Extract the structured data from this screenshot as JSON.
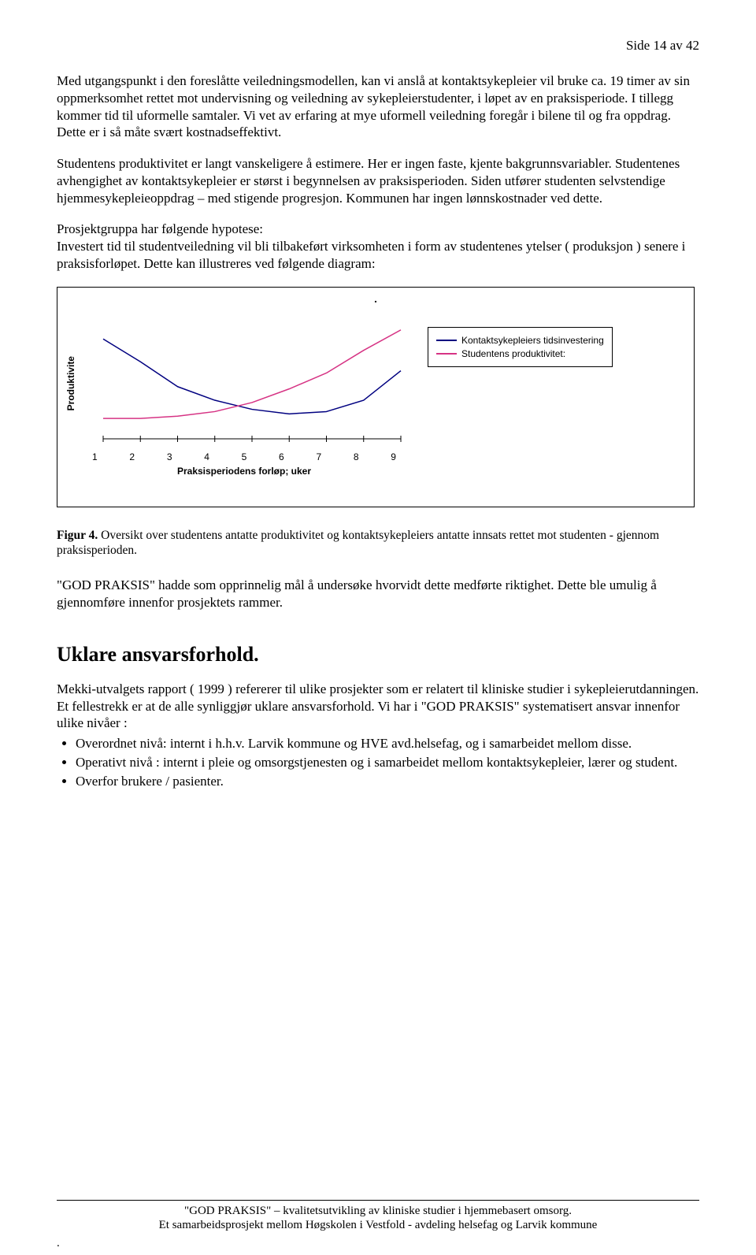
{
  "page_label": "Side 14 av 42",
  "paragraphs": {
    "p1": "Med utgangspunkt i den foreslåtte veiledningsmodellen, kan vi anslå at kontaktsykepleier vil bruke ca. 19 timer av sin oppmerksomhet rettet mot undervisning og veiledning av sykepleierstudenter, i løpet av en praksisperiode. I tillegg kommer tid til uformelle samtaler. Vi vet av erfaring at mye uformell veiledning foregår i bilene til og fra oppdrag. Dette er i så måte svært kostnadseffektivt.",
    "p2": "Studentens produktivitet er langt vanskeligere å  estimere. Her er ingen faste, kjente bakgrunnsvariabler. Studentenes avhengighet av kontaktsykepleier er størst i begynnelsen av praksisperioden. Siden utfører studenten selvstendige hjemmesykepleieoppdrag – med stigende progresjon. Kommunen har ingen lønnskostnader ved dette.",
    "p3_lead": "Prosjektgruppa har følgende hypotese:",
    "p3_rest": "Investert tid til studentveiledning vil bli tilbakeført virksomheten i form av studentenes ytelser ( produksjon ) senere i praksisforløpet. Dette kan illustreres ved følgende diagram:"
  },
  "chart": {
    "type": "line",
    "title_dot": ".",
    "ylabel": "Produktivite",
    "xlabel": "Praksisperiodens forløp; uker",
    "x_ticks": [
      "1",
      "2",
      "3",
      "4",
      "5",
      "6",
      "7",
      "8",
      "9"
    ],
    "xlim": [
      1,
      9
    ],
    "ylim": [
      0,
      100
    ],
    "background_color": "#ffffff",
    "axis_color": "#000000",
    "line_width": 1.5,
    "series": [
      {
        "name": "kontaktsykepleier",
        "label": "Kontaktsykepleiers tidsinvestering",
        "color": "#000080",
        "x": [
          1,
          2,
          3,
          4,
          5,
          6,
          7,
          8,
          9
        ],
        "y": [
          88,
          68,
          46,
          34,
          26,
          22,
          24,
          34,
          60
        ]
      },
      {
        "name": "student",
        "label": "Studentens produktivitet:",
        "color": "#d63384",
        "x": [
          1,
          2,
          3,
          4,
          5,
          6,
          7,
          8,
          9
        ],
        "y": [
          18,
          18,
          20,
          24,
          32,
          44,
          58,
          78,
          96
        ]
      }
    ]
  },
  "caption": {
    "lead": "Figur 4.",
    "rest": " Oversikt over studentens antatte produktivitet og kontaktsykepleiers antatte innsats rettet mot studenten - gjennom praksisperioden."
  },
  "after_caption": "\"GOD PRAKSIS\" hadde som opprinnelig mål å undersøke hvorvidt dette medførte riktighet. Dette ble umulig å gjennomføre innenfor prosjektets rammer.",
  "section_heading": "Uklare ansvarsforhold.",
  "section_intro": "Mekki-utvalgets rapport ( 1999 ) refererer til ulike prosjekter som er relatert til kliniske studier i sykepleierutdanningen. Et fellestrekk er at de alle synliggjør uklare ansvarsforhold. Vi har i \"GOD PRAKSIS\" systematisert ansvar innenfor ulike nivåer :",
  "bullets": [
    "Overordnet nivå:  internt i h.h.v. Larvik kommune og HVE avd.helsefag, og i samarbeidet mellom disse.",
    "Operativt nivå : internt i pleie og omsorgstjenesten og i samarbeidet mellom kontaktsykepleier, lærer og student.",
    "Overfor brukere / pasienter."
  ],
  "footer": {
    "line1": "\"GOD PRAKSIS\" – kvalitetsutvikling av kliniske studier i hjemmebasert omsorg.",
    "line2": "Et samarbeidsprosjekt mellom Høgskolen i Vestfold - avdeling helsefag og Larvik kommune"
  },
  "corner_dot": "."
}
